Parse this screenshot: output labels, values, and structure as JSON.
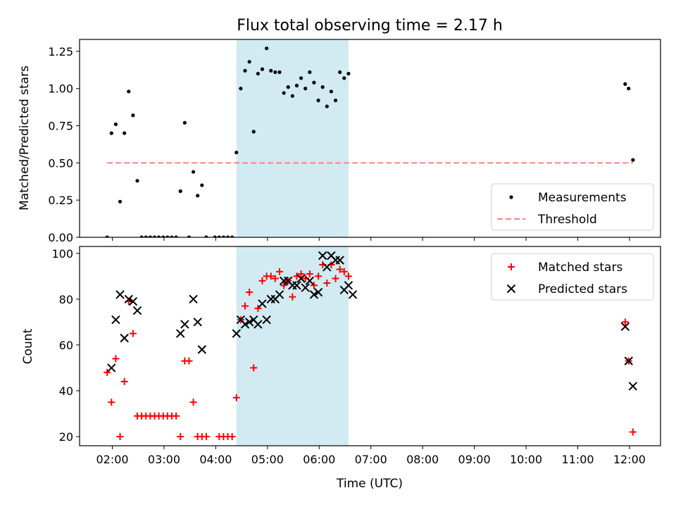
{
  "chart_data": [
    {
      "type": "scatter",
      "title": "Flux total observing time = 2.17 h",
      "ylabel": "Matched/Predicted stars",
      "xlabel": "",
      "xlim": [
        "01:22",
        "12:36"
      ],
      "ylim": [
        0,
        1.33
      ],
      "yticks": [
        "0.00",
        "0.25",
        "0.50",
        "0.75",
        "1.00",
        "1.25"
      ],
      "shaded_span": [
        "04:24",
        "06:34"
      ],
      "shade_color": "#add8e6",
      "legend_position": "lower right",
      "series": [
        {
          "name": "Measurements",
          "color": "#000000",
          "marker": "dot",
          "points": [
            [
              "01:54",
              0.0
            ],
            [
              "01:59",
              0.7
            ],
            [
              "02:04",
              0.76
            ],
            [
              "02:09",
              0.24
            ],
            [
              "02:14",
              0.7
            ],
            [
              "02:19",
              0.98
            ],
            [
              "02:24",
              0.82
            ],
            [
              "02:29",
              0.38
            ],
            [
              "02:34",
              0.0
            ],
            [
              "02:39",
              0.0
            ],
            [
              "02:44",
              0.0
            ],
            [
              "02:49",
              0.0
            ],
            [
              "02:54",
              0.0
            ],
            [
              "02:59",
              0.0
            ],
            [
              "03:04",
              0.0
            ],
            [
              "03:09",
              0.0
            ],
            [
              "03:14",
              0.0
            ],
            [
              "03:19",
              0.31
            ],
            [
              "03:24",
              0.77
            ],
            [
              "03:29",
              0.0
            ],
            [
              "03:34",
              0.44
            ],
            [
              "03:39",
              0.28
            ],
            [
              "03:44",
              0.35
            ],
            [
              "03:49",
              0.0
            ],
            [
              "03:59",
              0.0
            ],
            [
              "04:04",
              0.0
            ],
            [
              "04:09",
              0.0
            ],
            [
              "04:14",
              0.0
            ],
            [
              "04:19",
              0.0
            ],
            [
              "04:24",
              0.57
            ],
            [
              "04:29",
              1.0
            ],
            [
              "04:34",
              1.12
            ],
            [
              "04:39",
              1.18
            ],
            [
              "04:44",
              0.71
            ],
            [
              "04:49",
              1.1
            ],
            [
              "04:54",
              1.13
            ],
            [
              "04:59",
              1.27
            ],
            [
              "05:04",
              1.12
            ],
            [
              "05:09",
              1.11
            ],
            [
              "05:14",
              1.11
            ],
            [
              "05:19",
              0.97
            ],
            [
              "05:24",
              1.01
            ],
            [
              "05:29",
              0.95
            ],
            [
              "05:34",
              1.02
            ],
            [
              "05:39",
              1.07
            ],
            [
              "05:44",
              1.0
            ],
            [
              "05:49",
              1.11
            ],
            [
              "05:54",
              1.04
            ],
            [
              "05:59",
              0.92
            ],
            [
              "06:04",
              1.01
            ],
            [
              "06:09",
              0.88
            ],
            [
              "06:14",
              0.98
            ],
            [
              "06:19",
              0.92
            ],
            [
              "06:24",
              1.11
            ],
            [
              "06:29",
              1.07
            ],
            [
              "06:34",
              1.1
            ],
            [
              "11:55",
              1.03
            ],
            [
              "11:59",
              1.0
            ],
            [
              "12:04",
              0.52
            ]
          ]
        },
        {
          "name": "Threshold",
          "color": "#ff8080",
          "marker": "dashed-line",
          "points": [
            [
              "01:54",
              0.5
            ],
            [
              "12:04",
              0.5
            ]
          ]
        }
      ]
    },
    {
      "type": "scatter",
      "title": "",
      "ylabel": "Count",
      "xlabel": "Time (UTC)",
      "xlim": [
        "01:22",
        "12:36"
      ],
      "ylim": [
        16,
        103
      ],
      "yticks": [
        "20",
        "40",
        "60",
        "80",
        "100"
      ],
      "xticks": [
        "02:00",
        "03:00",
        "04:00",
        "05:00",
        "06:00",
        "07:00",
        "08:00",
        "09:00",
        "10:00",
        "11:00",
        "12:00"
      ],
      "shaded_span": [
        "04:24",
        "06:34"
      ],
      "shade_color": "#add8e6",
      "legend_position": "upper right",
      "series": [
        {
          "name": "Matched stars",
          "color": "#ff0000",
          "marker": "plus",
          "points": [
            [
              "01:54",
              48
            ],
            [
              "01:59",
              35
            ],
            [
              "02:04",
              54
            ],
            [
              "02:09",
              20
            ],
            [
              "02:14",
              44
            ],
            [
              "02:19",
              79
            ],
            [
              "02:24",
              65
            ],
            [
              "02:29",
              29
            ],
            [
              "02:34",
              29
            ],
            [
              "02:39",
              29
            ],
            [
              "02:44",
              29
            ],
            [
              "02:49",
              29
            ],
            [
              "02:54",
              29
            ],
            [
              "02:59",
              29
            ],
            [
              "03:04",
              29
            ],
            [
              "03:09",
              29
            ],
            [
              "03:14",
              29
            ],
            [
              "03:19",
              20
            ],
            [
              "03:24",
              53
            ],
            [
              "03:29",
              53
            ],
            [
              "03:34",
              35
            ],
            [
              "03:39",
              20
            ],
            [
              "03:44",
              20
            ],
            [
              "03:49",
              20
            ],
            [
              "04:04",
              20
            ],
            [
              "04:09",
              20
            ],
            [
              "04:14",
              20
            ],
            [
              "04:19",
              20
            ],
            [
              "04:24",
              37
            ],
            [
              "04:29",
              71
            ],
            [
              "04:34",
              77
            ],
            [
              "04:39",
              83
            ],
            [
              "04:44",
              50
            ],
            [
              "04:49",
              76
            ],
            [
              "04:54",
              88
            ],
            [
              "04:59",
              90
            ],
            [
              "05:04",
              90
            ],
            [
              "05:09",
              89
            ],
            [
              "05:14",
              92
            ],
            [
              "05:19",
              86
            ],
            [
              "05:24",
              88
            ],
            [
              "05:29",
              81
            ],
            [
              "05:34",
              90
            ],
            [
              "05:39",
              91
            ],
            [
              "05:44",
              89
            ],
            [
              "05:49",
              91
            ],
            [
              "05:54",
              86
            ],
            [
              "05:59",
              90
            ],
            [
              "06:04",
              95
            ],
            [
              "06:09",
              87
            ],
            [
              "06:14",
              95
            ],
            [
              "06:19",
              89
            ],
            [
              "06:24",
              93
            ],
            [
              "06:29",
              92
            ],
            [
              "06:34",
              90
            ],
            [
              "11:55",
              70
            ],
            [
              "11:59",
              53
            ],
            [
              "12:04",
              22
            ]
          ]
        },
        {
          "name": "Predicted stars",
          "color": "#000000",
          "marker": "x",
          "points": [
            [
              "01:59",
              50
            ],
            [
              "02:04",
              71
            ],
            [
              "02:09",
              82
            ],
            [
              "02:14",
              63
            ],
            [
              "02:19",
              80
            ],
            [
              "02:24",
              79
            ],
            [
              "02:29",
              75
            ],
            [
              "03:19",
              65
            ],
            [
              "03:24",
              69
            ],
            [
              "03:34",
              80
            ],
            [
              "03:39",
              70
            ],
            [
              "03:44",
              58
            ],
            [
              "04:24",
              65
            ],
            [
              "04:29",
              71
            ],
            [
              "04:34",
              69
            ],
            [
              "04:39",
              70
            ],
            [
              "04:44",
              71
            ],
            [
              "04:49",
              69
            ],
            [
              "04:54",
              78
            ],
            [
              "04:59",
              71
            ],
            [
              "05:04",
              80
            ],
            [
              "05:09",
              80
            ],
            [
              "05:14",
              82
            ],
            [
              "05:19",
              88
            ],
            [
              "05:24",
              88
            ],
            [
              "05:29",
              86
            ],
            [
              "05:34",
              86
            ],
            [
              "05:39",
              89
            ],
            [
              "05:44",
              85
            ],
            [
              "05:49",
              88
            ],
            [
              "05:54",
              82
            ],
            [
              "05:59",
              83
            ],
            [
              "06:04",
              99
            ],
            [
              "06:09",
              94
            ],
            [
              "06:14",
              99
            ],
            [
              "06:19",
              97
            ],
            [
              "06:24",
              97
            ],
            [
              "06:29",
              84
            ],
            [
              "06:34",
              86
            ],
            [
              "06:39",
              82
            ],
            [
              "11:55",
              68
            ],
            [
              "11:59",
              53
            ],
            [
              "12:04",
              42
            ]
          ]
        }
      ]
    }
  ]
}
